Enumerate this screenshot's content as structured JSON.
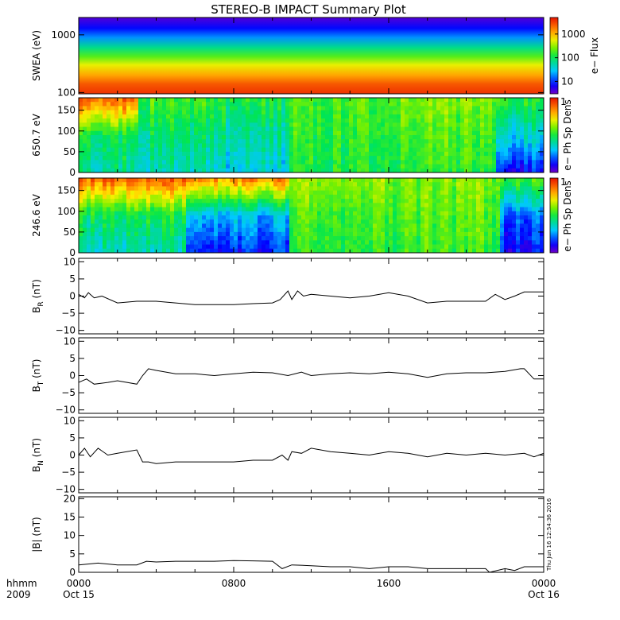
{
  "title": "STEREO-B IMPACT Summary Plot",
  "footer": {
    "row1_label": "hhmm",
    "row2_label": "2009",
    "xticks": [
      {
        "hhmm": "0000",
        "date": "Oct 15",
        "hour": 0
      },
      {
        "hhmm": "0800",
        "date": "",
        "hour": 8
      },
      {
        "hhmm": "1600",
        "date": "",
        "hour": 16
      },
      {
        "hhmm": "0000",
        "date": "Oct 16",
        "hour": 24
      }
    ],
    "stamp": "Thu Jun 16 12:54:36 2016"
  },
  "colorbars": {
    "flux_label": "e− Flux",
    "flux_ticks": [
      "1000",
      "100",
      "10"
    ],
    "dens_label": "e− Ph Sp Dens",
    "dens_tick": "1"
  },
  "chart_data": [
    {
      "type": "heatmap",
      "panel": "swea",
      "ylabel": "SWEA (eV)",
      "yscale": "log",
      "ylim": [
        95,
        2000
      ],
      "yticks": [
        "1000",
        "100"
      ],
      "colorbar": "e− Flux",
      "colorbar_ticks": [
        10,
        100,
        1000
      ],
      "x_range_hours": [
        0,
        24
      ],
      "profile_by_energy": [
        {
          "energy_eV": 2000,
          "flux": 4
        },
        {
          "energy_eV": 1300,
          "flux": 8
        },
        {
          "energy_eV": 900,
          "flux": 20
        },
        {
          "energy_eV": 600,
          "flux": 70
        },
        {
          "energy_eV": 420,
          "flux": 200
        },
        {
          "energy_eV": 300,
          "flux": 550
        },
        {
          "energy_eV": 200,
          "flux": 1200
        },
        {
          "energy_eV": 140,
          "flux": 2500
        },
        {
          "energy_eV": 100,
          "flux": 3500
        }
      ]
    },
    {
      "type": "heatmap",
      "panel": "pad650",
      "ylabel": "650.7 eV",
      "ylim": [
        0,
        180
      ],
      "yticks": [
        "0",
        "50",
        "100",
        "150"
      ],
      "colorbar": "e− Ph Sp Dens",
      "colorbar_ticks": [
        1
      ],
      "x_range_hours": [
        0,
        24
      ],
      "segments": [
        {
          "t0": 0,
          "t1": 3,
          "top": 0.9,
          "mid": 0.5,
          "bottom": 0.42
        },
        {
          "t0": 3,
          "t1": 7,
          "top": 0.55,
          "mid": 0.45,
          "bottom": 0.38
        },
        {
          "t0": 7,
          "t1": 10.8,
          "top": 0.5,
          "mid": 0.4,
          "bottom": 0.33
        },
        {
          "t0": 10.8,
          "t1": 16,
          "top": 0.55,
          "mid": 0.52,
          "bottom": 0.5
        },
        {
          "t0": 16,
          "t1": 21.5,
          "top": 0.6,
          "mid": 0.55,
          "bottom": 0.52
        },
        {
          "t0": 21.5,
          "t1": 24,
          "top": 0.5,
          "mid": 0.35,
          "bottom": 0.12
        }
      ]
    },
    {
      "type": "heatmap",
      "panel": "pad246",
      "ylabel": "246.6 eV",
      "ylim": [
        0,
        180
      ],
      "yticks": [
        "0",
        "50",
        "100",
        "150"
      ],
      "colorbar": "e− Ph Sp Dens",
      "colorbar_ticks": [
        1
      ],
      "x_range_hours": [
        0,
        24
      ],
      "segments": [
        {
          "t0": 0,
          "t1": 5.5,
          "top": 0.88,
          "mid": 0.48,
          "bottom": 0.38
        },
        {
          "t0": 5.5,
          "t1": 10.8,
          "top": 0.82,
          "mid": 0.3,
          "bottom": 0.15
        },
        {
          "t0": 10.8,
          "t1": 16,
          "top": 0.62,
          "mid": 0.55,
          "bottom": 0.52
        },
        {
          "t0": 16,
          "t1": 21.8,
          "top": 0.6,
          "mid": 0.56,
          "bottom": 0.53
        },
        {
          "t0": 21.8,
          "t1": 24,
          "top": 0.55,
          "mid": 0.22,
          "bottom": 0.12
        }
      ]
    },
    {
      "type": "line",
      "panel": "br",
      "ylabel": "B_R (nT)",
      "ylabel_base": "B",
      "ylabel_sub": "R",
      "ylabel_unit": " (nT)",
      "ylim": [
        -11,
        11
      ],
      "yticks": [
        "−10",
        "−5",
        "0",
        "5",
        "10"
      ],
      "x": [
        0,
        0.3,
        0.5,
        0.8,
        1.2,
        2,
        3,
        4,
        5,
        6,
        7,
        8,
        9,
        10,
        10.4,
        10.8,
        11,
        11.3,
        11.6,
        12,
        13,
        14,
        15,
        16,
        17,
        18,
        19,
        20,
        21,
        21.5,
        22,
        22.5,
        23,
        24
      ],
      "y": [
        0.5,
        -0.5,
        1,
        -0.5,
        0,
        -2,
        -1.5,
        -1.5,
        -2,
        -2.5,
        -2.5,
        -2.5,
        -2.2,
        -2,
        -1,
        1.5,
        -1,
        1.5,
        0,
        0.5,
        0,
        -0.5,
        0,
        1,
        0,
        -2,
        -1.5,
        -1.5,
        -1.5,
        0.5,
        -1,
        0,
        1.2,
        1.2
      ]
    },
    {
      "type": "line",
      "panel": "bt",
      "ylabel": "B_T (nT)",
      "ylabel_base": "B",
      "ylabel_sub": "T",
      "ylabel_unit": " (nT)",
      "ylim": [
        -11,
        11
      ],
      "yticks": [
        "−10",
        "−5",
        "0",
        "5",
        "10"
      ],
      "x": [
        0,
        0.4,
        0.8,
        1.5,
        2,
        3,
        3.3,
        3.6,
        4,
        5,
        6,
        7,
        8,
        9,
        10,
        10.8,
        11.5,
        12,
        13,
        14,
        15,
        16,
        17,
        18,
        19,
        20,
        21,
        22,
        22.8,
        23,
        23.5,
        24
      ],
      "y": [
        -2,
        -1,
        -2.5,
        -2,
        -1.5,
        -2.5,
        0,
        2,
        1.5,
        0.5,
        0.5,
        0,
        0.5,
        1,
        0.8,
        0,
        1,
        0,
        0.5,
        0.8,
        0.5,
        1,
        0.5,
        -0.5,
        0.5,
        0.8,
        0.8,
        1.2,
        2,
        2,
        -1,
        -1
      ]
    },
    {
      "type": "line",
      "panel": "bn",
      "ylabel": "B_N (nT)",
      "ylabel_base": "B",
      "ylabel_sub": "N",
      "ylabel_unit": " (nT)",
      "ylim": [
        -11,
        11
      ],
      "yticks": [
        "−10",
        "−5",
        "0",
        "5",
        "10"
      ],
      "x": [
        0,
        0.3,
        0.6,
        1,
        1.5,
        2,
        3,
        3.3,
        3.6,
        4,
        5,
        6,
        7,
        8,
        9,
        10,
        10.5,
        10.8,
        11,
        11.5,
        12,
        13,
        14,
        15,
        16,
        17,
        18,
        19,
        20,
        21,
        22,
        23,
        23.5,
        24
      ],
      "y": [
        0,
        2,
        -0.5,
        2,
        0,
        0.5,
        1.5,
        -2,
        -2,
        -2.5,
        -2,
        -2,
        -2,
        -2,
        -1.5,
        -1.5,
        0,
        -1.5,
        1,
        0.5,
        2,
        1,
        0.5,
        0,
        1,
        0.5,
        -0.5,
        0.5,
        0,
        0.5,
        0,
        0.5,
        -0.5,
        0.5
      ]
    },
    {
      "type": "line",
      "panel": "bmag",
      "ylabel": "|B| (nT)",
      "ylim": [
        0,
        20.5
      ],
      "yticks": [
        "0",
        "5",
        "10",
        "15",
        "20"
      ],
      "x": [
        0,
        1,
        2,
        3,
        3.5,
        4,
        5,
        6,
        7,
        8,
        9,
        10,
        10.5,
        11,
        12,
        13,
        14,
        15,
        16,
        17,
        18,
        19,
        20,
        21,
        21.2,
        22,
        22.5,
        23,
        24
      ],
      "y": [
        2,
        2.5,
        2,
        2,
        3,
        2.8,
        3,
        3,
        3,
        3.2,
        3.1,
        3,
        1,
        2,
        1.8,
        1.5,
        1.5,
        1,
        1.5,
        1.5,
        1,
        1,
        1,
        1,
        0,
        1,
        0.5,
        1.5,
        1.5
      ]
    }
  ]
}
